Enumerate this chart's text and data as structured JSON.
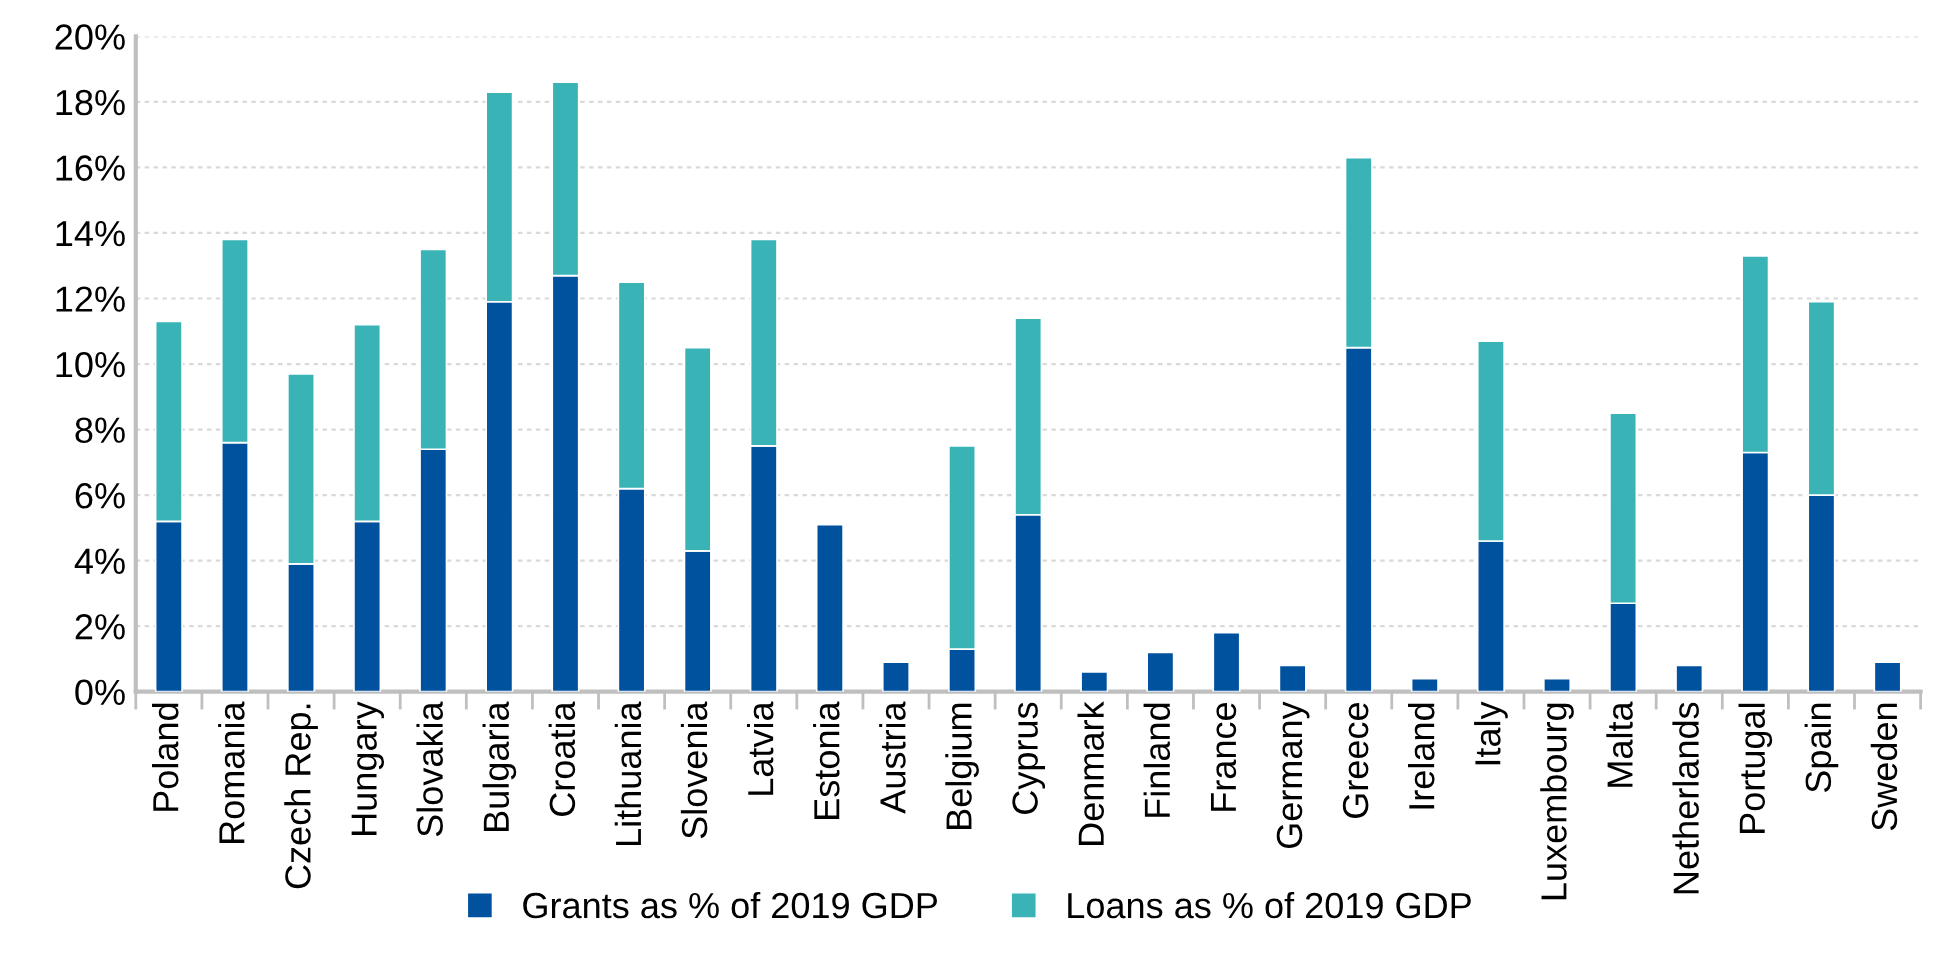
{
  "chart_data": {
    "type": "bar",
    "stacked": true,
    "categories": [
      "Poland",
      "Romania",
      "Czech Rep.",
      "Hungary",
      "Slovakia",
      "Bulgaria",
      "Croatia",
      "Lithuania",
      "Slovenia",
      "Latvia",
      "Estonia",
      "Austria",
      "Belgium",
      "Cyprus",
      "Denmark",
      "Finland",
      "France",
      "Germany",
      "Greece",
      "Ireland",
      "Italy",
      "Luxembourg",
      "Malta",
      "Netherlands",
      "Portugal",
      "Spain",
      "Sweden"
    ],
    "series": [
      {
        "name": "Grants as % of 2019 GDP",
        "color": "#00519e",
        "values": [
          5.2,
          7.6,
          3.9,
          5.2,
          7.4,
          11.9,
          12.7,
          6.2,
          4.3,
          7.5,
          5.1,
          0.9,
          1.3,
          5.4,
          0.6,
          1.2,
          1.8,
          0.8,
          10.5,
          0.4,
          4.6,
          0.4,
          2.7,
          0.8,
          7.3,
          6.0,
          0.9
        ]
      },
      {
        "name": "Loans as % of 2019 GDP",
        "color": "#3ab3b7",
        "values": [
          6.1,
          6.2,
          5.8,
          6.0,
          6.1,
          6.4,
          5.9,
          6.3,
          6.2,
          6.3,
          null,
          null,
          6.2,
          6.0,
          null,
          null,
          null,
          null,
          5.8,
          null,
          6.1,
          null,
          5.8,
          null,
          6.0,
          5.9,
          null
        ]
      }
    ],
    "ylim": [
      0,
      20
    ],
    "yticks": [
      {
        "value": 0,
        "label": "0%"
      },
      {
        "value": 2,
        "label": "2%"
      },
      {
        "value": 4,
        "label": "4%"
      },
      {
        "value": 6,
        "label": "6%"
      },
      {
        "value": 8,
        "label": "8%"
      },
      {
        "value": 10,
        "label": "10%"
      },
      {
        "value": 12,
        "label": "12%"
      },
      {
        "value": 14,
        "label": "14%"
      },
      {
        "value": 16,
        "label": "16%"
      },
      {
        "value": 18,
        "label": "18%"
      },
      {
        "value": 20,
        "label": "20%"
      }
    ],
    "grid": "y",
    "legend": "bottom"
  }
}
